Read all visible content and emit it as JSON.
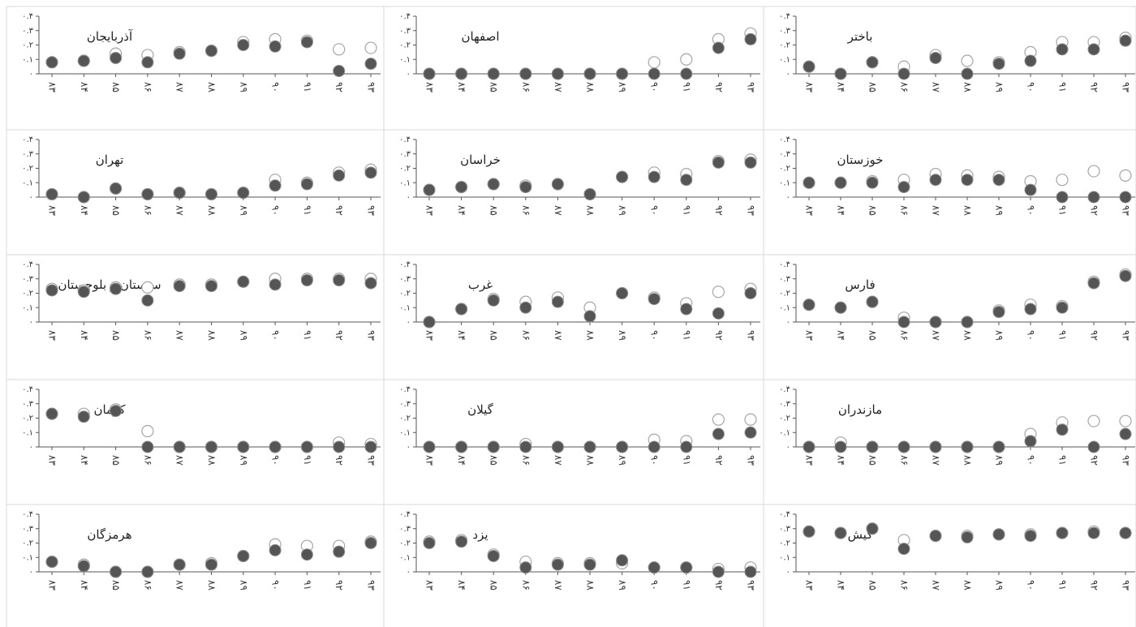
{
  "figure": {
    "colors": {
      "filled": "#555555",
      "hollow": "#ffffff",
      "hollow_stroke": "#a6a6a6",
      "axis": "#555555",
      "grid_line": "#d9d9d9"
    }
  },
  "chart_data": [
    {
      "type": "scatter",
      "title": "باختر",
      "categories": [
        "۸۳",
        "۸۴",
        "۸۵",
        "۸۶",
        "۸۷",
        "۸۸",
        "۸۹",
        "۹۰",
        "۹۱",
        "۹۲",
        "۹۳"
      ],
      "ylim": [
        0,
        0.4
      ],
      "yticks": [
        "۰",
        "۰.۱",
        "۰.۲",
        "۰.۳",
        "۰.۴"
      ],
      "series": [
        {
          "marker": "hollow",
          "values": [
            0.05,
            0.0,
            0.08,
            0.05,
            0.13,
            0.09,
            0.08,
            0.15,
            0.22,
            0.22,
            0.25
          ]
        },
        {
          "marker": "filled",
          "values": [
            0.05,
            0.0,
            0.08,
            0.0,
            0.11,
            0.0,
            0.07,
            0.09,
            0.17,
            0.17,
            0.23
          ]
        }
      ]
    },
    {
      "type": "scatter",
      "title": "اصفهان",
      "categories": [
        "۸۳",
        "۸۴",
        "۸۵",
        "۸۶",
        "۸۷",
        "۸۸",
        "۸۹",
        "۹۰",
        "۹۱",
        "۹۲",
        "۹۳"
      ],
      "ylim": [
        0,
        0.4
      ],
      "yticks": [
        "۰",
        "۰.۱",
        "۰.۲",
        "۰.۳",
        "۰.۴"
      ],
      "series": [
        {
          "marker": "hollow",
          "values": [
            0.0,
            0.0,
            0.0,
            0.0,
            0.0,
            0.0,
            0.0,
            0.08,
            0.1,
            0.24,
            0.28
          ]
        },
        {
          "marker": "filled",
          "values": [
            0.0,
            0.0,
            0.0,
            0.0,
            0.0,
            0.0,
            0.0,
            0.0,
            0.0,
            0.18,
            0.24
          ]
        }
      ]
    },
    {
      "type": "scatter",
      "title": "آذربایجان",
      "categories": [
        "۸۳",
        "۸۴",
        "۸۵",
        "۸۶",
        "۸۷",
        "۸۸",
        "۸۹",
        "۹۰",
        "۹۱",
        "۹۲",
        "۹۳"
      ],
      "ylim": [
        0,
        0.4
      ],
      "yticks": [
        "۰",
        "۰.۱",
        "۰.۲",
        "۰.۳",
        "۰.۴"
      ],
      "series": [
        {
          "marker": "hollow",
          "values": [
            0.08,
            0.09,
            0.14,
            0.13,
            0.15,
            0.16,
            0.22,
            0.24,
            0.23,
            0.17,
            0.18
          ]
        },
        {
          "marker": "filled",
          "values": [
            0.08,
            0.09,
            0.11,
            0.08,
            0.14,
            0.16,
            0.2,
            0.19,
            0.22,
            0.02,
            0.07
          ]
        }
      ]
    },
    {
      "type": "scatter",
      "title": "خوزستان",
      "categories": [
        "۸۳",
        "۸۴",
        "۸۵",
        "۸۶",
        "۸۷",
        "۸۸",
        "۸۹",
        "۹۰",
        "۹۱",
        "۹۲",
        "۹۳"
      ],
      "ylim": [
        0,
        0.4
      ],
      "yticks": [
        "۰",
        "۰.۱",
        "۰.۲",
        "۰.۳",
        "۰.۴"
      ],
      "series": [
        {
          "marker": "hollow",
          "values": [
            0.1,
            0.1,
            0.11,
            0.12,
            0.16,
            0.15,
            0.14,
            0.11,
            0.12,
            0.18,
            0.15
          ]
        },
        {
          "marker": "filled",
          "values": [
            0.1,
            0.1,
            0.1,
            0.07,
            0.12,
            0.12,
            0.12,
            0.05,
            0.0,
            0.0,
            0.0
          ]
        }
      ]
    },
    {
      "type": "scatter",
      "title": "خراسان",
      "categories": [
        "۸۳",
        "۸۴",
        "۸۵",
        "۸۶",
        "۸۷",
        "۸۸",
        "۸۹",
        "۹۰",
        "۹۱",
        "۹۲",
        "۹۳"
      ],
      "ylim": [
        0,
        0.4
      ],
      "yticks": [
        "۰",
        "۰.۱",
        "۰.۲",
        "۰.۳",
        "۰.۴"
      ],
      "series": [
        {
          "marker": "hollow",
          "values": [
            0.05,
            0.07,
            0.09,
            0.08,
            0.09,
            0.02,
            0.14,
            0.17,
            0.16,
            0.25,
            0.26
          ]
        },
        {
          "marker": "filled",
          "values": [
            0.05,
            0.07,
            0.09,
            0.07,
            0.09,
            0.02,
            0.14,
            0.14,
            0.12,
            0.24,
            0.24
          ]
        }
      ]
    },
    {
      "type": "scatter",
      "title": "تهران",
      "categories": [
        "۸۳",
        "۸۴",
        "۸۵",
        "۸۶",
        "۸۷",
        "۸۸",
        "۸۹",
        "۹۰",
        "۹۱",
        "۹۲",
        "۹۳"
      ],
      "ylim": [
        0,
        0.4
      ],
      "yticks": [
        "۰",
        "۰.۱",
        "۰.۲",
        "۰.۳",
        "۰.۴"
      ],
      "series": [
        {
          "marker": "hollow",
          "values": [
            0.02,
            0.0,
            0.06,
            0.02,
            0.03,
            0.02,
            0.03,
            0.12,
            0.1,
            0.17,
            0.19
          ]
        },
        {
          "marker": "filled",
          "values": [
            0.02,
            0.0,
            0.06,
            0.02,
            0.03,
            0.02,
            0.03,
            0.08,
            0.09,
            0.15,
            0.17
          ]
        }
      ]
    },
    {
      "type": "scatter",
      "title": "فارس",
      "categories": [
        "۸۳",
        "۸۴",
        "۸۵",
        "۸۶",
        "۸۷",
        "۸۸",
        "۸۹",
        "۹۰",
        "۹۱",
        "۹۲",
        "۹۳"
      ],
      "ylim": [
        0,
        0.4
      ],
      "yticks": [
        "۰",
        "۰.۱",
        "۰.۲",
        "۰.۳",
        "۰.۴"
      ],
      "series": [
        {
          "marker": "hollow",
          "values": [
            0.12,
            0.1,
            0.14,
            0.03,
            0.0,
            0.0,
            0.08,
            0.12,
            0.11,
            0.28,
            0.33
          ]
        },
        {
          "marker": "filled",
          "values": [
            0.12,
            0.1,
            0.14,
            0.0,
            0.0,
            0.0,
            0.07,
            0.09,
            0.1,
            0.27,
            0.32
          ]
        }
      ]
    },
    {
      "type": "scatter",
      "title": "غرب",
      "categories": [
        "۸۳",
        "۸۴",
        "۸۵",
        "۸۶",
        "۸۷",
        "۸۸",
        "۸۹",
        "۹۰",
        "۹۱",
        "۹۲",
        "۹۳"
      ],
      "ylim": [
        0,
        0.4
      ],
      "yticks": [
        "۰",
        "۰.۱",
        "۰.۲",
        "۰.۳",
        "۰.۴"
      ],
      "series": [
        {
          "marker": "hollow",
          "values": [
            0.0,
            0.09,
            0.16,
            0.14,
            0.17,
            0.1,
            0.2,
            0.17,
            0.13,
            0.21,
            0.23
          ]
        },
        {
          "marker": "filled",
          "values": [
            0.0,
            0.09,
            0.15,
            0.1,
            0.14,
            0.04,
            0.2,
            0.16,
            0.09,
            0.06,
            0.2
          ]
        }
      ]
    },
    {
      "type": "scatter",
      "title": "سیستان و بلوچستان",
      "categories": [
        "۸۳",
        "۸۴",
        "۸۵",
        "۸۶",
        "۸۷",
        "۸۸",
        "۸۹",
        "۹۰",
        "۹۱",
        "۹۲",
        "۹۳"
      ],
      "ylim": [
        0,
        0.4
      ],
      "yticks": [
        "۰",
        "۰.۱",
        "۰.۲",
        "۰.۳",
        "۰.۴"
      ],
      "series": [
        {
          "marker": "hollow",
          "values": [
            0.23,
            0.22,
            0.24,
            0.24,
            0.26,
            0.26,
            0.28,
            0.3,
            0.3,
            0.3,
            0.3
          ]
        },
        {
          "marker": "filled",
          "values": [
            0.22,
            0.21,
            0.23,
            0.15,
            0.25,
            0.25,
            0.28,
            0.26,
            0.29,
            0.29,
            0.27
          ]
        }
      ]
    },
    {
      "type": "scatter",
      "title": "مازندران",
      "categories": [
        "۸۳",
        "۸۴",
        "۸۵",
        "۸۶",
        "۸۷",
        "۸۸",
        "۸۹",
        "۹۰",
        "۹۱",
        "۹۲",
        "۹۳"
      ],
      "ylim": [
        0,
        0.4
      ],
      "yticks": [
        "۰",
        "۰.۱",
        "۰.۲",
        "۰.۳",
        "۰.۴"
      ],
      "series": [
        {
          "marker": "hollow",
          "values": [
            0.0,
            0.03,
            0.0,
            0.0,
            0.0,
            0.0,
            0.0,
            0.09,
            0.17,
            0.18,
            0.18
          ]
        },
        {
          "marker": "filled",
          "values": [
            0.0,
            0.0,
            0.0,
            0.0,
            0.0,
            0.0,
            0.0,
            0.04,
            0.12,
            0.0,
            0.09
          ]
        }
      ]
    },
    {
      "type": "scatter",
      "title": "گیلان",
      "categories": [
        "۸۳",
        "۸۴",
        "۸۵",
        "۸۶",
        "۸۷",
        "۸۸",
        "۸۹",
        "۹۰",
        "۹۱",
        "۹۲",
        "۹۳"
      ],
      "ylim": [
        0,
        0.4
      ],
      "yticks": [
        "۰",
        "۰.۱",
        "۰.۲",
        "۰.۳",
        "۰.۴"
      ],
      "series": [
        {
          "marker": "hollow",
          "values": [
            0.0,
            0.0,
            0.0,
            0.02,
            0.0,
            0.0,
            0.0,
            0.05,
            0.04,
            0.19,
            0.19
          ]
        },
        {
          "marker": "filled",
          "values": [
            0.0,
            0.0,
            0.0,
            0.0,
            0.0,
            0.0,
            0.0,
            0.0,
            0.0,
            0.09,
            0.1
          ]
        }
      ]
    },
    {
      "type": "scatter",
      "title": "کرمان",
      "categories": [
        "۸۳",
        "۸۴",
        "۸۵",
        "۸۶",
        "۸۷",
        "۸۸",
        "۸۹",
        "۹۰",
        "۹۱",
        "۹۲",
        "۹۳"
      ],
      "ylim": [
        0,
        0.4
      ],
      "yticks": [
        "۰",
        "۰.۱",
        "۰.۲",
        "۰.۳",
        "۰.۴"
      ],
      "series": [
        {
          "marker": "hollow",
          "values": [
            0.23,
            0.23,
            0.26,
            0.11,
            0.0,
            0.0,
            0.0,
            0.0,
            0.0,
            0.03,
            0.02
          ]
        },
        {
          "marker": "filled",
          "values": [
            0.23,
            0.21,
            0.25,
            0.0,
            0.0,
            0.0,
            0.0,
            0.0,
            0.0,
            0.0,
            0.0
          ]
        }
      ]
    },
    {
      "type": "scatter",
      "title": "کیش",
      "categories": [
        "۸۳",
        "۸۴",
        "۸۵",
        "۸۶",
        "۸۷",
        "۸۸",
        "۸۹",
        "۹۰",
        "۹۱",
        "۹۲",
        "۹۳"
      ],
      "ylim": [
        0,
        0.4
      ],
      "yticks": [
        "۰",
        "۰.۱",
        "۰.۲",
        "۰.۳",
        "۰.۴"
      ],
      "series": [
        {
          "marker": "hollow",
          "values": [
            0.28,
            0.27,
            0.3,
            0.22,
            0.25,
            0.25,
            0.26,
            0.26,
            0.27,
            0.28,
            0.27
          ]
        },
        {
          "marker": "filled",
          "values": [
            0.28,
            0.27,
            0.3,
            0.16,
            0.25,
            0.24,
            0.26,
            0.25,
            0.27,
            0.27,
            0.27
          ]
        }
      ]
    },
    {
      "type": "scatter",
      "title": "یزد",
      "categories": [
        "۸۳",
        "۸۴",
        "۸۵",
        "۸۶",
        "۸۷",
        "۸۸",
        "۸۹",
        "۹۰",
        "۹۱",
        "۹۲",
        "۹۳"
      ],
      "ylim": [
        0,
        0.4
      ],
      "yticks": [
        "۰",
        "۰.۱",
        "۰.۲",
        "۰.۳",
        "۰.۴"
      ],
      "series": [
        {
          "marker": "hollow",
          "values": [
            0.21,
            0.22,
            0.12,
            0.07,
            0.06,
            0.06,
            0.06,
            0.03,
            0.03,
            0.02,
            0.03
          ]
        },
        {
          "marker": "filled",
          "values": [
            0.2,
            0.21,
            0.11,
            0.03,
            0.05,
            0.05,
            0.08,
            0.03,
            0.03,
            0.0,
            0.0
          ]
        }
      ]
    },
    {
      "type": "scatter",
      "title": "هرمزگان",
      "categories": [
        "۸۳",
        "۸۴",
        "۸۵",
        "۸۶",
        "۸۷",
        "۸۸",
        "۸۹",
        "۹۰",
        "۹۱",
        "۹۲",
        "۹۳"
      ],
      "ylim": [
        0,
        0.4
      ],
      "yticks": [
        "۰",
        "۰.۱",
        "۰.۲",
        "۰.۳",
        "۰.۴"
      ],
      "series": [
        {
          "marker": "hollow",
          "values": [
            0.07,
            0.05,
            0.0,
            0.0,
            0.05,
            0.06,
            0.11,
            0.19,
            0.18,
            0.18,
            0.21
          ]
        },
        {
          "marker": "filled",
          "values": [
            0.07,
            0.04,
            0.0,
            0.0,
            0.05,
            0.05,
            0.11,
            0.15,
            0.12,
            0.14,
            0.2
          ]
        }
      ]
    }
  ]
}
